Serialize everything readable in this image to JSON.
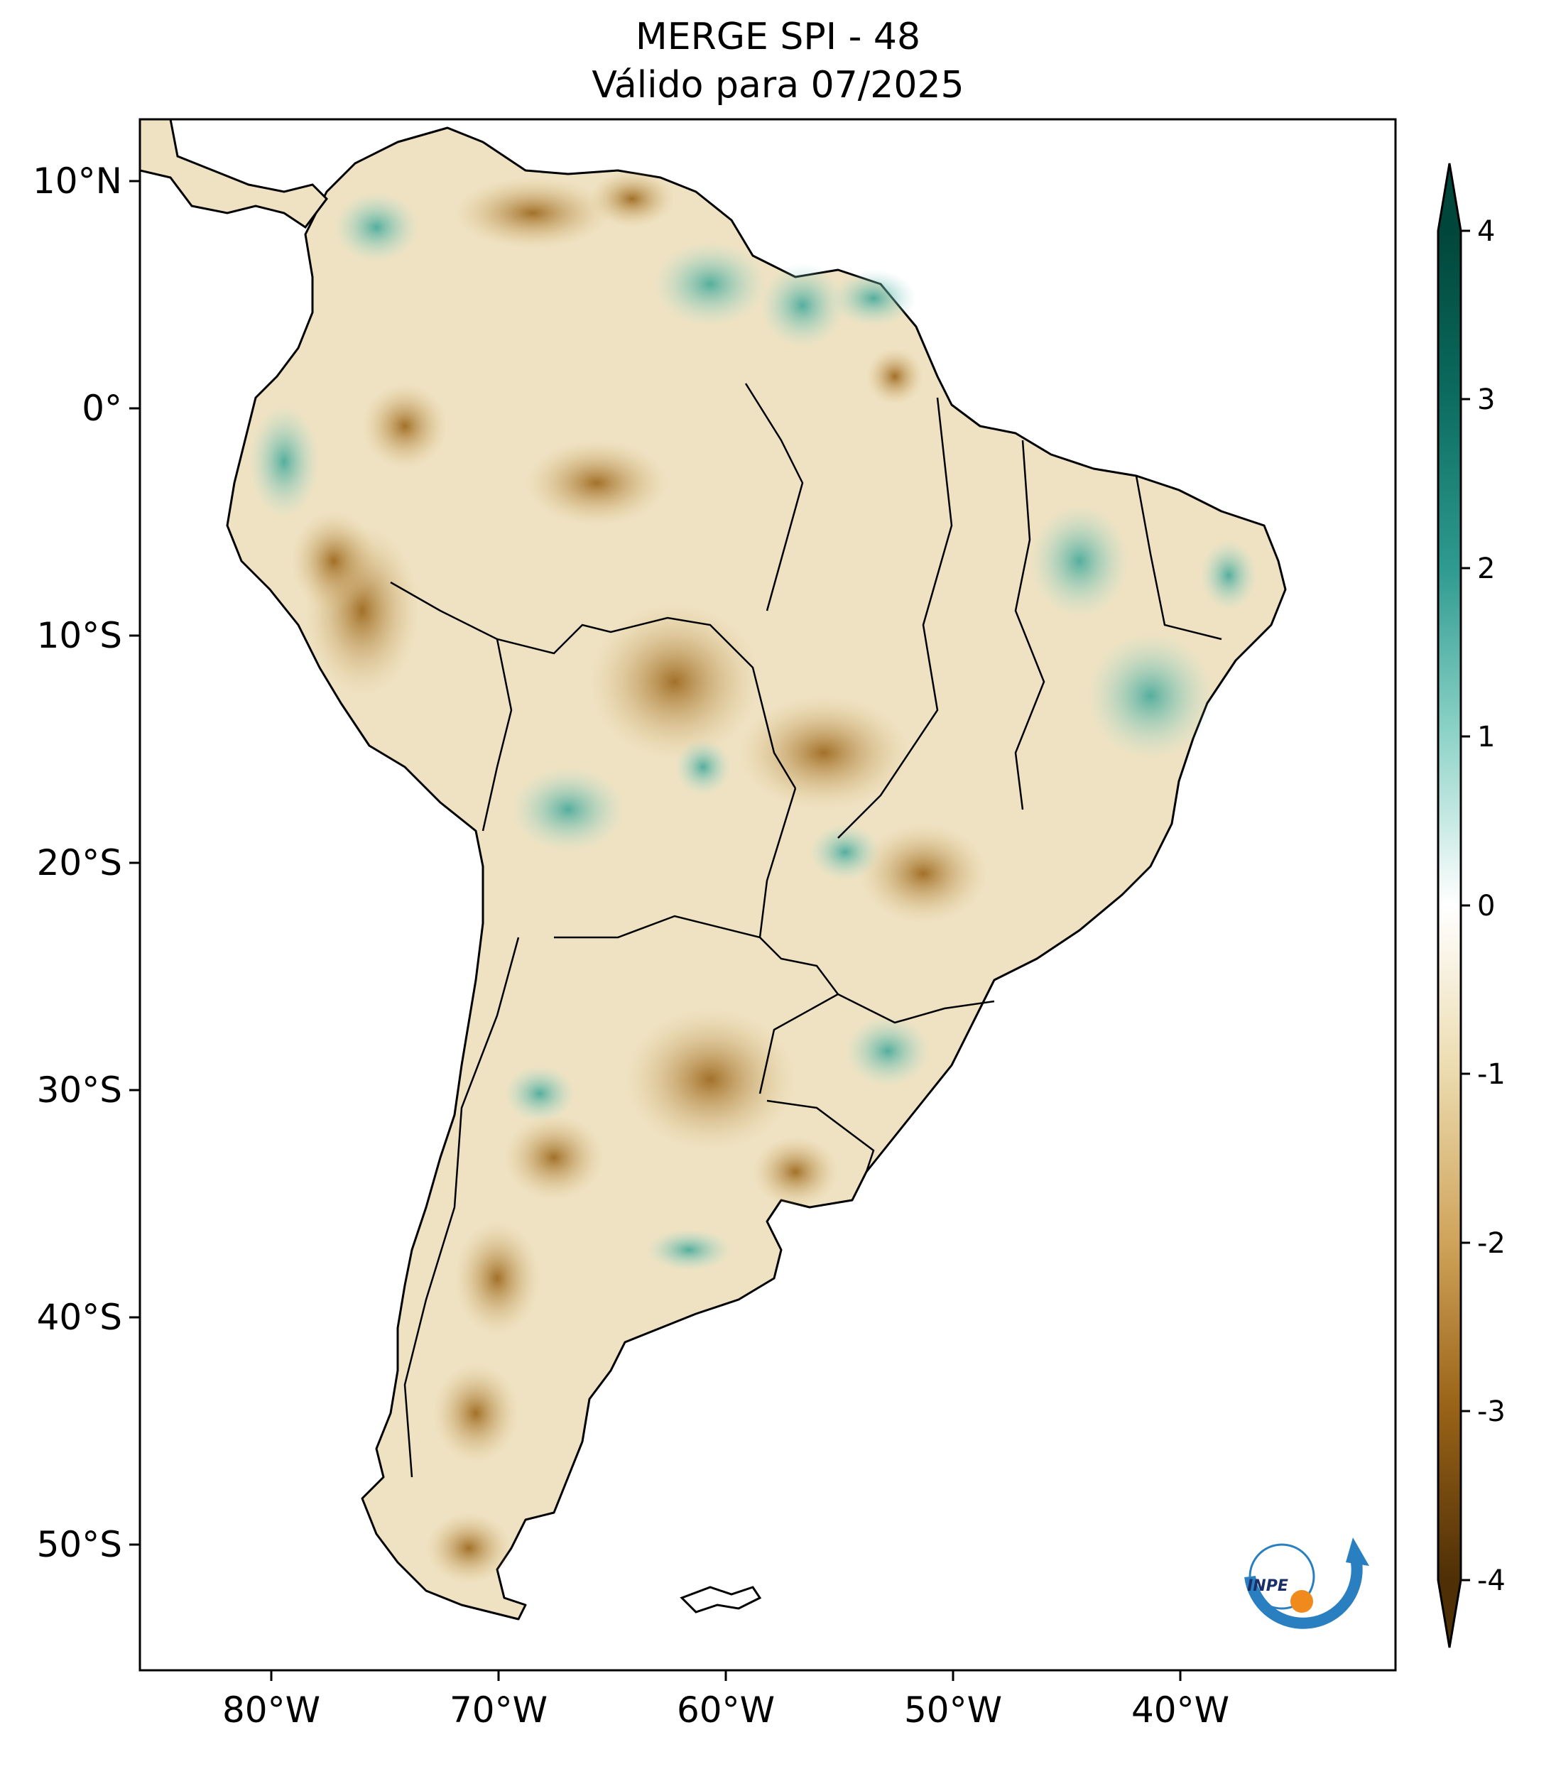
{
  "title": {
    "line1": "MERGE   SPI - 48",
    "line2": "Válido para 07/2025"
  },
  "map": {
    "region": "South America",
    "lon_ticks": [
      "80°W",
      "70°W",
      "60°W",
      "50°W",
      "40°W"
    ],
    "lat_ticks": [
      "10°N",
      "0°",
      "10°S",
      "20°S",
      "30°S",
      "40°S",
      "50°S"
    ]
  },
  "colorbar": {
    "ticks": [
      "4",
      "3",
      "2",
      "1",
      "0",
      "-1",
      "-2",
      "-3",
      "-4"
    ],
    "min": -4,
    "max": 4,
    "colors": {
      "wet_extreme": "#01463a",
      "wet_strong": "#1f8d84",
      "wet_mid": "#8bd2c6",
      "neutral": "#ffffff",
      "dry_mid": "#e6d3a3",
      "dry_strong": "#b8822e",
      "dry_extreme": "#4f2f06"
    }
  },
  "logo": {
    "text": "INPE"
  }
}
